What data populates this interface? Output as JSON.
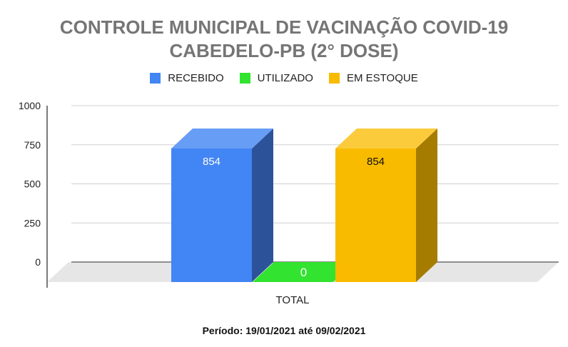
{
  "title_line1": "CONTROLE MUNICIPAL DE VACINAÇÃO COVID-19",
  "title_line2": "CABEDELO-PB (2° DOSE)",
  "period": "Período: 19/01/2021 até 09/02/2021",
  "chart_data": {
    "type": "bar",
    "title": "CONTROLE MUNICIPAL DE VACINAÇÃO COVID-19 CABEDELO-PB (2° DOSE)",
    "categories": [
      "TOTAL"
    ],
    "series": [
      {
        "name": "RECEBIDO",
        "values": [
          854
        ],
        "color": "#4285f4",
        "side_color": "#2c539a",
        "top_color": "#689df6",
        "label_color": "#ffffff"
      },
      {
        "name": "UTILIZADO",
        "values": [
          0
        ],
        "color": "#32e32f",
        "side_color": "#23a521",
        "top_color": "#5ceb59",
        "label_color": "#ffffff"
      },
      {
        "name": "EM ESTOQUE",
        "values": [
          854
        ],
        "color": "#f9bb00",
        "side_color": "#a57c00",
        "top_color": "#fbcb3b",
        "label_color": "#111111"
      }
    ],
    "yticks": [
      0,
      250,
      500,
      750,
      1000
    ],
    "ylim": [
      0,
      1000
    ],
    "legend_position": "top",
    "grid": true,
    "three_d": true,
    "xlabel": "",
    "ylabel": ""
  }
}
